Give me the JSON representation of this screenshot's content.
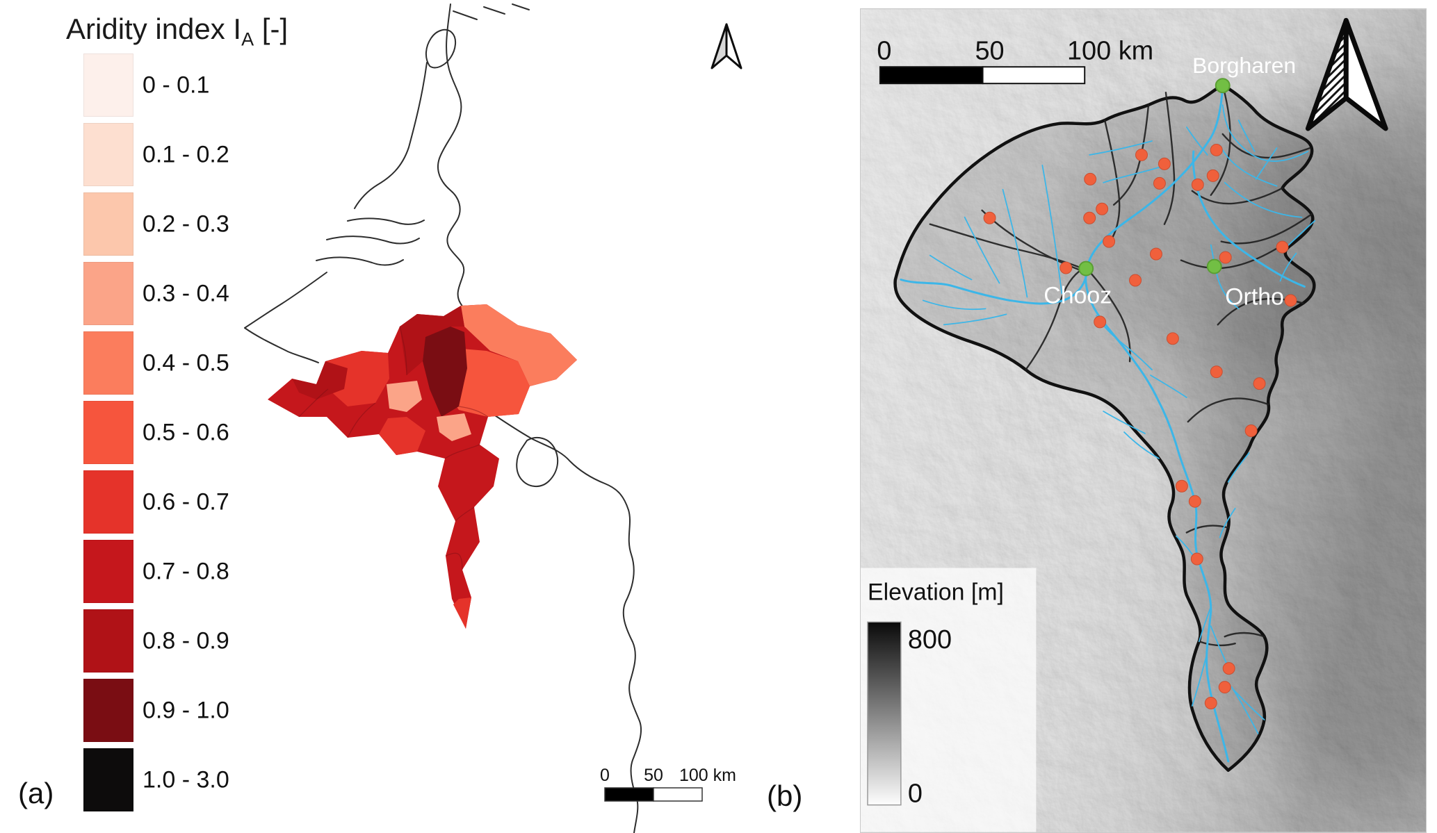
{
  "panel_a": {
    "label": "(a)",
    "legend": {
      "title_main": "Aridity index I",
      "title_sub": "A",
      "title_unit": " [-]",
      "classes": [
        {
          "range": "0 - 0.1",
          "color": "#fdf0eb"
        },
        {
          "range": "0.1 - 0.2",
          "color": "#fddfd0"
        },
        {
          "range": "0.2 - 0.3",
          "color": "#fcc7ac"
        },
        {
          "range": "0.3 - 0.4",
          "color": "#fba488"
        },
        {
          "range": "0.4 - 0.5",
          "color": "#fb7d5d"
        },
        {
          "range": "0.5 - 0.6",
          "color": "#f6553d"
        },
        {
          "range": "0.6 - 0.7",
          "color": "#e5332a"
        },
        {
          "range": "0.7 - 0.8",
          "color": "#c5171c"
        },
        {
          "range": "0.8 - 0.9",
          "color": "#b01217"
        },
        {
          "range": "0.9 - 1.0",
          "color": "#7a0d13"
        },
        {
          "range": "1.0 - 3.0",
          "color": "#0d0c0c"
        }
      ]
    },
    "scalebar": {
      "zero": "0",
      "mid": "50",
      "end": "100 km"
    }
  },
  "panel_b": {
    "label": "(b)",
    "scalebar": {
      "zero": "0",
      "mid": "50",
      "end": "100 km"
    },
    "stations": [
      {
        "name": "Borgharen"
      },
      {
        "name": "Chooz"
      },
      {
        "name": "Ortho"
      }
    ],
    "elevation_legend": {
      "title": "Elevation [m]",
      "max": "800",
      "min": "0"
    },
    "colors": {
      "river": "#3cb6e8",
      "gauge_dot": "#f0603c",
      "station_dot": "#72bf44"
    }
  }
}
